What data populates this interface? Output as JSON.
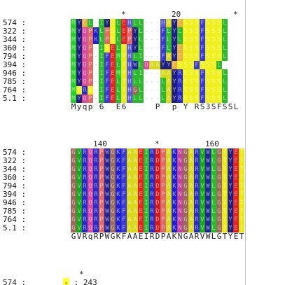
{
  "colors": {
    "M": "#29cc29",
    "L": "#2db82d",
    "I": "#2db82d",
    "V": "#1aa51a",
    "Y": "#1e1e82",
    "W": "#22229a",
    "F": "#3a3ad0",
    "S": "#f0f01e",
    "T": "#e8e81c",
    "A": "#d8d81c",
    "Q": "#d64aa0",
    "N": "#c0409a",
    "P": "#e06a6a",
    "G": "#9a6a5a",
    "R": "#2a2ac8",
    "K": "#1f1fd0",
    "H": "#5a5ad0",
    "E": "#e82020",
    "D": "#d01818",
    "C": "#e8b040",
    "gap": "#ffffff"
  },
  "block1": {
    "ruler": [
      {
        "text": "*",
        "col": 9
      },
      {
        "text": "20",
        "col": 18
      },
      {
        "text": "*",
        "col": 29
      }
    ],
    "rows": [
      {
        "label": "574 :",
        "seq": "MYCL-IYSLEHLL---HAYCSSSFSSSL"
      },
      {
        "label": "322 :",
        "seq": "MYQPKLPSLEPYL---FLYLSSSFSSSL"
      },
      {
        "label": "344 :",
        "seq": "MYQPKLPSLEPYL---FLYLSSSFSSSL"
      },
      {
        "label": "360 :",
        "seq": "MYQP-ISELTHYL---FLYCSSSFSSSL"
      },
      {
        "label": "794 :",
        "seq": "MYQP-IFEMTHLI---FAYCSSSFSSSL"
      },
      {
        "label": "394 :",
        "seq": "MYQP-IFELTHWLQAAYYCSSSFSSSL"
      },
      {
        "label": "946 :",
        "seq": "MYQP-IFEMTHLI---AAYRSSSFSSSL"
      },
      {
        "label": "785 :",
        "seq": "MYQP-IFELTHLL---LAYRSSSFSSSL"
      },
      {
        "label": "764 :",
        "seq": "MSRS-IFELTHGL---LAYRSSSFSSSL"
      },
      {
        "label": "5.1 :",
        "seq": "MYQP-IFELTHLL---LAYRSSSFSSSL"
      }
    ],
    "consensus": "Myqp 6  E6     P  p Y RS3SFSSL"
  },
  "block2": {
    "ruler": [
      {
        "text": "140",
        "col": 4
      },
      {
        "text": "*",
        "col": 15
      },
      {
        "text": "160",
        "col": 24
      }
    ],
    "rows": [
      {
        "label": "574 :",
        "seq": "GVRQRPWGKFAAEIRDPAKNGARVWLGTYET"
      },
      {
        "label": "322 :",
        "seq": "GVRQRPWGKFAAEIRDPAKNGARVWLGTYET"
      },
      {
        "label": "344 :",
        "seq": "GVRQRPWGKFAAEIRDPAKNGARVWLGTYET"
      },
      {
        "label": "360 :",
        "seq": "GVRQRPWGKFAAEIRDPAKNGARVWLGTYET"
      },
      {
        "label": "794 :",
        "seq": "GVRQRPWGKFAAEIRDPAKNGARVWLGTYET"
      },
      {
        "label": "394 :",
        "seq": "GVRQRPWGKFAAEIRDPAKNGARVWLGTYET"
      },
      {
        "label": "946 :",
        "seq": "GVRQRPWGKFAAEIRDPAKNGARVWLGTYET"
      },
      {
        "label": "785 :",
        "seq": "GVRQRPWGKFAAEIRDPAKNGARVWLGTYET"
      },
      {
        "label": "764 :",
        "seq": "GVRQRPWGKFAAEIRDPAKNGARVWLGTYET"
      },
      {
        "label": "5.1 :",
        "seq": "GVRQRPWGKFAAEIRDPAKNGARVWLGTYET"
      }
    ],
    "consensus": "GVRqRPWGKFAAEIRDPAKNGARVWLGTYET"
  },
  "trailing": {
    "star": "*",
    "label": "574 :",
    "highlight": "-",
    "suffix": ": 243"
  }
}
